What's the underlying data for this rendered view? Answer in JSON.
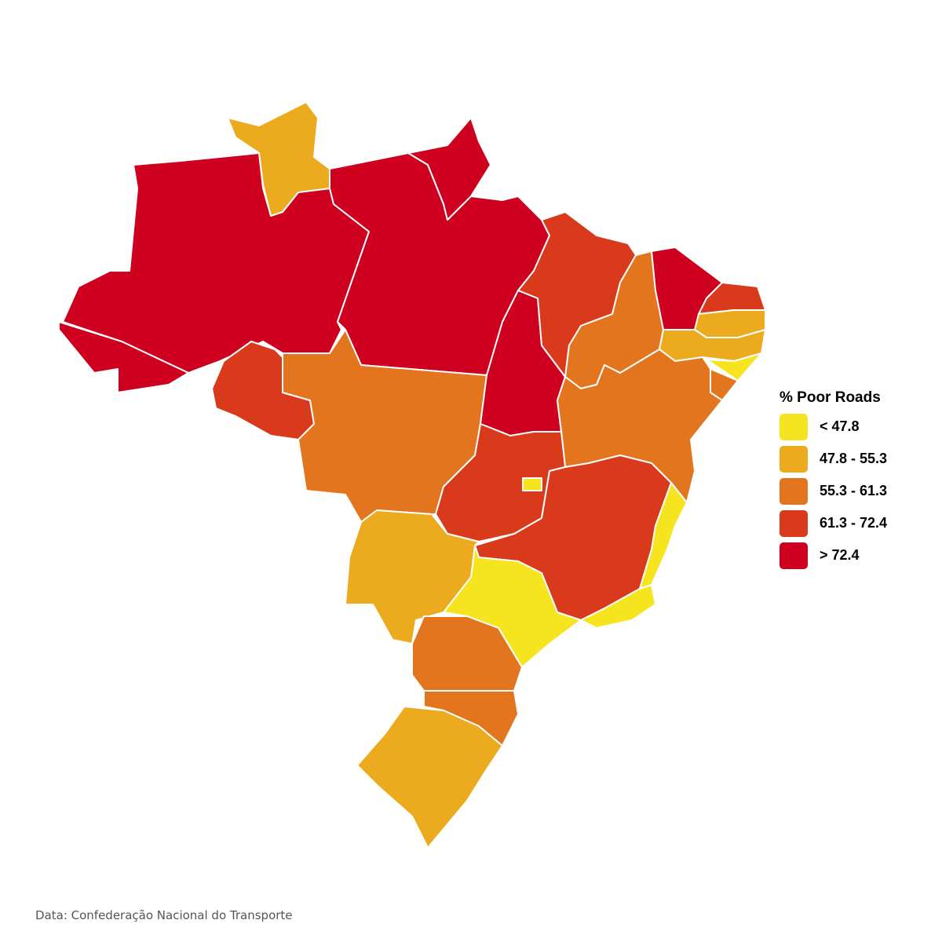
{
  "legend": {
    "title": "% Poor Roads",
    "items": [
      {
        "label": "< 47.8",
        "color": "#f6e41e"
      },
      {
        "label": "47.8 - 55.3",
        "color": "#ecab1e"
      },
      {
        "label": "55.3 - 61.3",
        "color": "#e3751e"
      },
      {
        "label": "61.3 - 72.4",
        "color": "#d93a1b"
      },
      {
        "label": "> 72.4",
        "color": "#cf001f"
      }
    ]
  },
  "source": "Data: Confederação Nacional do Transporte"
}
